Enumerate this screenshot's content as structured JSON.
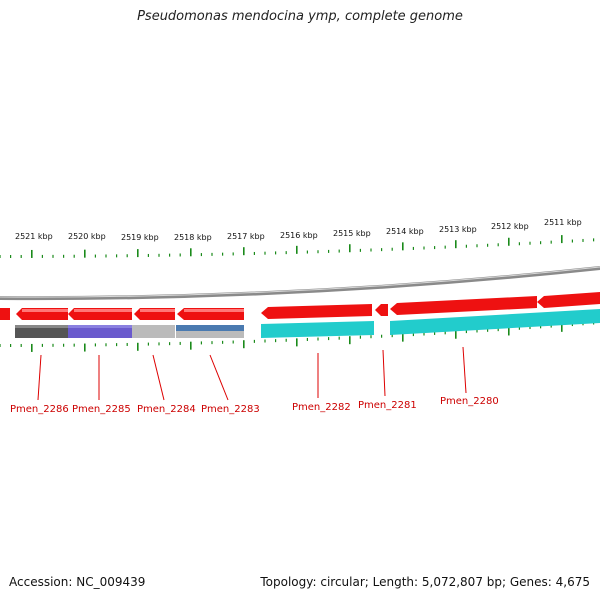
{
  "title": "Pseudomonas mendocina ymp, complete genome",
  "footer": {
    "accession": "Accession: NC_009439",
    "topology": "Topology: circular; Length: 5,072,807 bp; Genes: 4,675"
  },
  "colors": {
    "gene": "#ee1111",
    "backbone": "#8a8a8a",
    "tick": "#1a8a1a",
    "leader_line": "#dd0000",
    "label": "#cc0000",
    "cds_cyan": "#22cccc",
    "cds_purple": "#6a5acd",
    "cds_dark": "#555555",
    "cds_light": "#bbbbbb",
    "cds_steel": "#4a7ab0"
  },
  "tick_labels": [
    "2521 kbp",
    "2520 kbp",
    "2519 kbp",
    "2518 kbp",
    "2517 kbp",
    "2516 kbp",
    "2515 kbp",
    "2514 kbp",
    "2513 kbp",
    "2512 kbp",
    "2511 kbp"
  ],
  "genes": [
    {
      "label": "Pmen_2286"
    },
    {
      "label": "Pmen_2285"
    },
    {
      "label": "Pmen_2284"
    },
    {
      "label": "Pmen_2283"
    },
    {
      "label": "Pmen_2282"
    },
    {
      "label": "Pmen_2281"
    },
    {
      "label": "Pmen_2280"
    }
  ]
}
